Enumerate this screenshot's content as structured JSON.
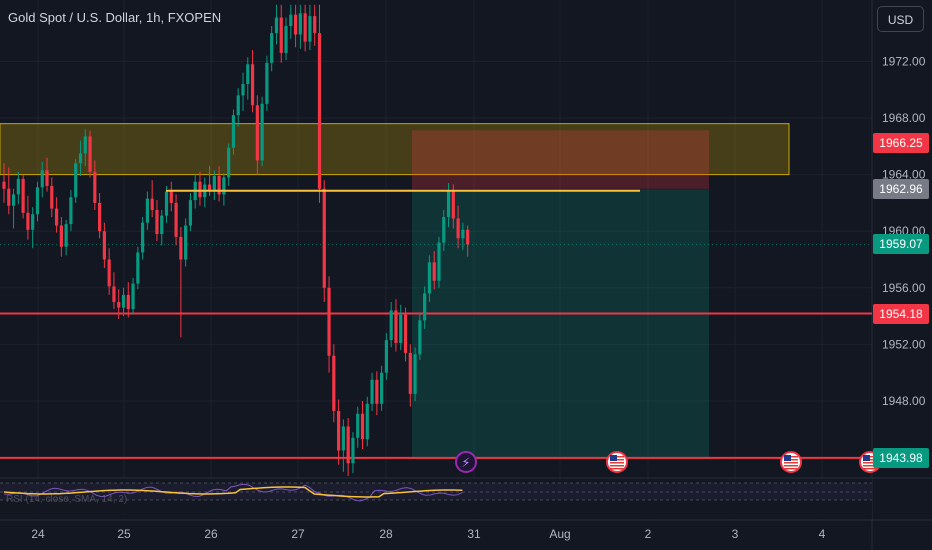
{
  "header": {
    "title": "Gold Spot / U.S. Dollar, 1h, FXOPEN",
    "currency_button": "USD"
  },
  "indicator_label": "RSI (14, close, SMA, 14, 2)",
  "price_tags": [
    {
      "label": "1966.25",
      "value": 1966.25,
      "color": "#f23645",
      "name": "resistance-zone-price-tag"
    },
    {
      "label": "1962.96",
      "value": 1962.96,
      "color": "#787b86",
      "name": "level-price-tag"
    },
    {
      "label": "1959.07",
      "value": 1959.07,
      "color": "#089981",
      "name": "last-price-tag"
    },
    {
      "label": "1954.18",
      "value": 1954.18,
      "color": "#f23645",
      "name": "support-price-tag"
    },
    {
      "label": "1943.98",
      "value": 1943.98,
      "color": "#089981",
      "name": "target-price-tag"
    }
  ],
  "event_icons": [
    {
      "name": "lightning-icon",
      "x_date": "2023-07-30 20:00",
      "glyph": "⚡"
    },
    {
      "name": "us-flag-icon",
      "x_date": "2023-08-01 18:00",
      "glyph": ""
    },
    {
      "name": "us-flag-icon",
      "x_date": "2023-08-03 18:00",
      "glyph": ""
    },
    {
      "name": "us-flag-icon",
      "x_date": "2023-08-04 12:00",
      "glyph": ""
    }
  ],
  "chart_data": {
    "type": "candlestick",
    "title": "Gold Spot / U.S. Dollar, 1h, FXOPEN",
    "y_axis": {
      "ticks": [
        1948.0,
        1952.0,
        1956.0,
        1960.0,
        1964.0,
        1968.0,
        1972.0
      ],
      "tick_labels": [
        "1948.00",
        "1952.00",
        "1956.00",
        "1960.00",
        "1964.00",
        "1968.00",
        "1972.00"
      ],
      "range": [
        1942.5,
        1976.0
      ]
    },
    "x_axis": {
      "tick_labels": [
        "24",
        "25",
        "26",
        "27",
        "28",
        "31",
        "Aug",
        "2",
        "3",
        "4"
      ]
    },
    "drawings": {
      "resistance_zone": {
        "low": 1964.0,
        "high": 1967.6,
        "color": "#c8a700"
      },
      "horizontal_lines": [
        {
          "value": 1954.18,
          "color": "#f23645"
        },
        {
          "value": 1943.98,
          "color": "#f23645"
        }
      ],
      "key_level_segment": {
        "value": 1963.0,
        "color": "#f9c23c"
      },
      "short_position": {
        "entry": 1962.96,
        "stop": 1966.25,
        "target": 1943.98
      }
    },
    "colors": {
      "up": "#089981",
      "down": "#f23645"
    },
    "candles_ohlc": [
      [
        1963.5,
        1964.8,
        1962.0,
        1963.0
      ],
      [
        1963.0,
        1964.5,
        1961.2,
        1961.8
      ],
      [
        1961.8,
        1963.0,
        1960.2,
        1962.6
      ],
      [
        1962.6,
        1964.2,
        1961.9,
        1963.7
      ],
      [
        1963.7,
        1964.0,
        1960.9,
        1961.3
      ],
      [
        1961.3,
        1962.5,
        1959.4,
        1960.1
      ],
      [
        1960.1,
        1961.7,
        1958.8,
        1961.2
      ],
      [
        1961.2,
        1963.5,
        1960.7,
        1963.1
      ],
      [
        1963.1,
        1964.9,
        1962.4,
        1964.3
      ],
      [
        1964.3,
        1965.2,
        1962.8,
        1963.2
      ],
      [
        1963.2,
        1963.8,
        1961.0,
        1961.6
      ],
      [
        1961.6,
        1962.4,
        1959.9,
        1960.4
      ],
      [
        1960.4,
        1961.0,
        1958.2,
        1958.9
      ],
      [
        1958.9,
        1960.8,
        1958.3,
        1960.5
      ],
      [
        1960.5,
        1962.9,
        1960.0,
        1962.4
      ],
      [
        1962.4,
        1965.1,
        1962.0,
        1964.8
      ],
      [
        1964.8,
        1966.4,
        1963.9,
        1965.5
      ],
      [
        1965.5,
        1967.2,
        1964.6,
        1966.7
      ],
      [
        1966.7,
        1967.1,
        1963.8,
        1964.2
      ],
      [
        1964.2,
        1965.0,
        1961.5,
        1962.0
      ],
      [
        1962.0,
        1962.7,
        1959.5,
        1960.0
      ],
      [
        1960.0,
        1960.6,
        1957.4,
        1958.0
      ],
      [
        1958.0,
        1958.8,
        1955.5,
        1956.1
      ],
      [
        1956.1,
        1957.1,
        1954.5,
        1955.0
      ],
      [
        1955.0,
        1955.9,
        1953.8,
        1954.6
      ],
      [
        1954.6,
        1956.0,
        1954.0,
        1955.5
      ],
      [
        1955.5,
        1956.4,
        1953.9,
        1954.5
      ],
      [
        1954.5,
        1956.7,
        1954.1,
        1956.3
      ],
      [
        1956.3,
        1958.9,
        1955.9,
        1958.5
      ],
      [
        1958.5,
        1961.0,
        1958.0,
        1960.6
      ],
      [
        1960.6,
        1962.8,
        1960.1,
        1962.3
      ],
      [
        1962.3,
        1963.6,
        1961.0,
        1961.5
      ],
      [
        1961.5,
        1962.2,
        1959.3,
        1959.8
      ],
      [
        1959.8,
        1961.5,
        1959.0,
        1961.1
      ],
      [
        1961.1,
        1963.2,
        1960.6,
        1962.8
      ],
      [
        1962.8,
        1963.5,
        1961.4,
        1962.0
      ],
      [
        1962.0,
        1962.6,
        1959.0,
        1959.6
      ],
      [
        1959.6,
        1960.3,
        1952.5,
        1958.0
      ],
      [
        1958.0,
        1960.9,
        1957.5,
        1960.4
      ],
      [
        1960.4,
        1962.7,
        1960.0,
        1962.2
      ],
      [
        1962.2,
        1964.0,
        1961.6,
        1963.5
      ],
      [
        1963.5,
        1964.2,
        1961.8,
        1962.4
      ],
      [
        1962.4,
        1963.8,
        1961.7,
        1963.3
      ],
      [
        1963.3,
        1964.6,
        1962.5,
        1962.9
      ],
      [
        1962.9,
        1964.3,
        1962.2,
        1963.9
      ],
      [
        1963.9,
        1964.6,
        1962.1,
        1962.6
      ],
      [
        1962.6,
        1964.1,
        1961.8,
        1963.8
      ],
      [
        1963.8,
        1966.2,
        1963.2,
        1965.9
      ],
      [
        1965.9,
        1968.6,
        1965.4,
        1968.2
      ],
      [
        1968.2,
        1970.1,
        1967.4,
        1969.6
      ],
      [
        1969.6,
        1971.2,
        1968.5,
        1970.4
      ],
      [
        1970.4,
        1972.3,
        1969.3,
        1971.8
      ],
      [
        1971.8,
        1972.8,
        1968.4,
        1968.9
      ],
      [
        1968.9,
        1969.6,
        1964.0,
        1965.0
      ],
      [
        1965.0,
        1969.5,
        1964.6,
        1969.0
      ],
      [
        1969.0,
        1972.4,
        1968.5,
        1971.9
      ],
      [
        1971.9,
        1974.5,
        1971.3,
        1974.0
      ],
      [
        1974.0,
        1976.0,
        1973.2,
        1975.1
      ],
      [
        1975.1,
        1976.0,
        1971.9,
        1972.6
      ],
      [
        1972.6,
        1975.1,
        1972.1,
        1974.5
      ],
      [
        1974.5,
        1976.0,
        1973.6,
        1975.3
      ],
      [
        1975.3,
        1976.0,
        1973.0,
        1973.9
      ],
      [
        1973.9,
        1976.0,
        1972.9,
        1975.4
      ],
      [
        1975.4,
        1976.0,
        1972.7,
        1973.4
      ],
      [
        1973.4,
        1976.0,
        1972.8,
        1975.2
      ],
      [
        1975.2,
        1976.0,
        1973.1,
        1974.0
      ],
      [
        1974.0,
        1976.0,
        1962.0,
        1963.0
      ],
      [
        1963.0,
        1963.6,
        1955.0,
        1956.0
      ],
      [
        1956.0,
        1956.8,
        1950.0,
        1951.2
      ],
      [
        1951.2,
        1952.0,
        1946.5,
        1947.3
      ],
      [
        1947.3,
        1948.1,
        1943.5,
        1944.5
      ],
      [
        1944.5,
        1946.7,
        1943.0,
        1946.2
      ],
      [
        1946.2,
        1946.8,
        1942.7,
        1943.6
      ],
      [
        1943.6,
        1945.8,
        1942.9,
        1945.4
      ],
      [
        1945.4,
        1947.6,
        1944.7,
        1947.1
      ],
      [
        1947.1,
        1948.0,
        1944.6,
        1945.3
      ],
      [
        1945.3,
        1948.3,
        1944.8,
        1947.8
      ],
      [
        1947.8,
        1950.0,
        1947.3,
        1949.5
      ],
      [
        1949.5,
        1950.1,
        1947.0,
        1947.8
      ],
      [
        1947.8,
        1950.5,
        1947.3,
        1950.0
      ],
      [
        1950.0,
        1952.8,
        1949.5,
        1952.3
      ],
      [
        1952.3,
        1955.0,
        1951.8,
        1954.4
      ],
      [
        1954.4,
        1955.2,
        1951.5,
        1952.1
      ],
      [
        1952.1,
        1954.8,
        1951.6,
        1954.1
      ],
      [
        1954.1,
        1954.6,
        1950.8,
        1951.4
      ],
      [
        1951.4,
        1952.0,
        1947.6,
        1948.5
      ],
      [
        1948.5,
        1951.8,
        1948.0,
        1951.3
      ],
      [
        1951.3,
        1954.2,
        1950.9,
        1953.7
      ],
      [
        1953.7,
        1956.1,
        1953.1,
        1955.6
      ],
      [
        1955.6,
        1958.3,
        1955.0,
        1957.8
      ],
      [
        1957.8,
        1958.6,
        1955.9,
        1956.5
      ],
      [
        1956.5,
        1959.6,
        1956.0,
        1959.2
      ],
      [
        1959.2,
        1961.5,
        1958.6,
        1961.0
      ],
      [
        1961.0,
        1963.4,
        1960.3,
        1962.9
      ],
      [
        1962.9,
        1963.3,
        1960.2,
        1960.9
      ],
      [
        1960.9,
        1961.8,
        1958.8,
        1959.5
      ],
      [
        1959.5,
        1960.6,
        1958.7,
        1960.1
      ],
      [
        1960.1,
        1960.4,
        1958.2,
        1959.07
      ]
    ]
  }
}
